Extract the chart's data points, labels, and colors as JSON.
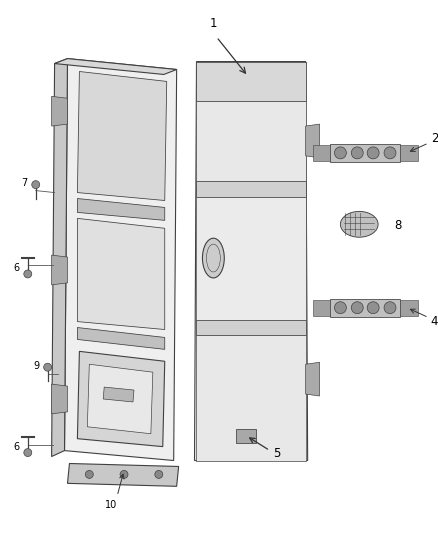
{
  "bg_color": "#ffffff",
  "lc": "#404040",
  "lc_light": "#808080",
  "fc_door_outer": "#e8e8e8",
  "fc_door_inner": "#f0f0f0",
  "fc_door_edge": "#c0c0c0",
  "fc_dark": "#b0b0b0",
  "fc_mid": "#d0d0d0",
  "figsize": [
    4.38,
    5.33
  ],
  "dpi": 100
}
